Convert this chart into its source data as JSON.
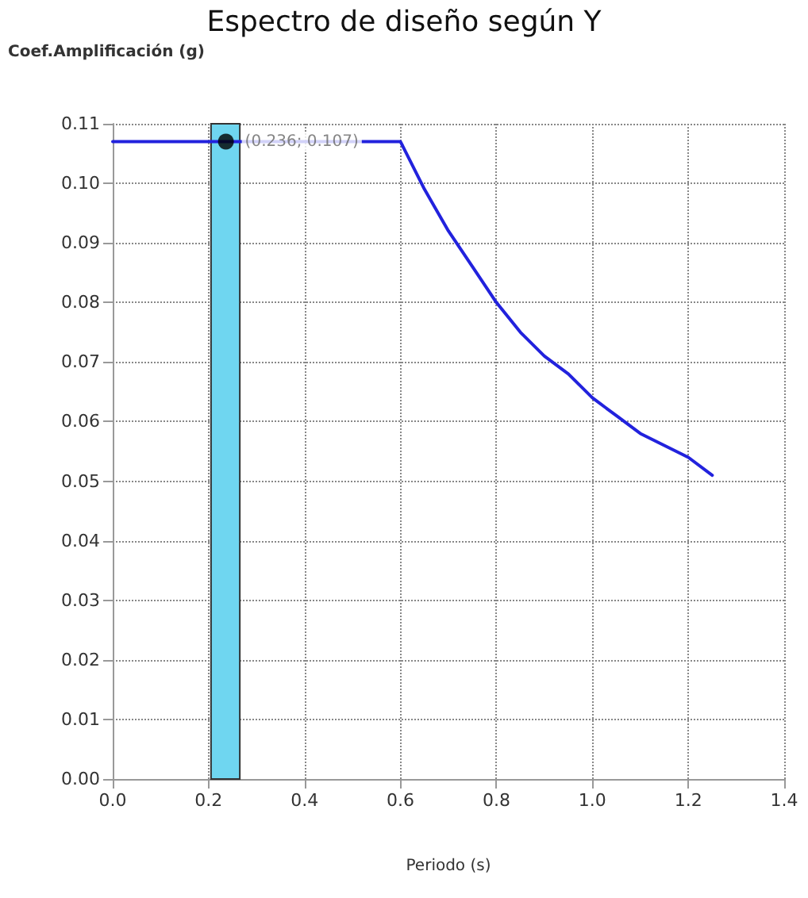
{
  "chart_data": {
    "type": "line",
    "title": "Espectro de diseño según Y",
    "xlabel": "Periodo (s)",
    "ylabel": "Coef.Amplificación (g)",
    "series": [
      {
        "color": "#2222dd",
        "marker": "none",
        "x": [
          0,
          0.6,
          0.65,
          0.7,
          0.75,
          0.8,
          0.85,
          0.9,
          0.95,
          1.0,
          1.05,
          1.1,
          1.15,
          1.2,
          1.25
        ],
        "values": [
          0.107,
          0.107,
          0.099,
          0.092,
          0.086,
          0.08,
          0.075,
          0.071,
          0.068,
          0.064,
          0.061,
          0.058,
          0.056,
          0.054,
          0.051
        ]
      },
      {
        "type": "scatter",
        "color": "#000000",
        "marker": "circle",
        "x": [
          0.236
        ],
        "values": [
          0.107
        ]
      }
    ],
    "annotations": [
      {
        "text": "(0.236; 0.107)",
        "x": 0.236,
        "y": 0.107
      }
    ],
    "bands": [
      {
        "axis": "x",
        "from": 0.205,
        "to": 0.265,
        "color": "#6fd6f0"
      }
    ],
    "xlim": [
      0,
      1.4
    ],
    "xticks": [
      {
        "value": 0,
        "label": "0.0"
      },
      {
        "value": 0.2,
        "label": "0.2"
      },
      {
        "value": 0.4,
        "label": "0.4"
      },
      {
        "value": 0.6,
        "label": "0.6"
      },
      {
        "value": 0.8,
        "label": "0.8"
      },
      {
        "value": 1,
        "label": "1.0"
      },
      {
        "value": 1.2,
        "label": "1.2"
      },
      {
        "value": 1.4,
        "label": "1.4"
      }
    ],
    "ylim": [
      0,
      0.11
    ],
    "yticks": [
      {
        "value": 0,
        "label": "0.00"
      },
      {
        "value": 0.01,
        "label": "0.01"
      },
      {
        "value": 0.02,
        "label": "0.02"
      },
      {
        "value": 0.03,
        "label": "0.03"
      },
      {
        "value": 0.04,
        "label": "0.04"
      },
      {
        "value": 0.05,
        "label": "0.05"
      },
      {
        "value": 0.06,
        "label": "0.06"
      },
      {
        "value": 0.07,
        "label": "0.07"
      },
      {
        "value": 0.08,
        "label": "0.08"
      },
      {
        "value": 0.09,
        "label": "0.09"
      },
      {
        "value": 0.1,
        "label": "0.10"
      },
      {
        "value": 0.11,
        "label": "0.11"
      }
    ],
    "grid": true,
    "line_style": "solid"
  }
}
